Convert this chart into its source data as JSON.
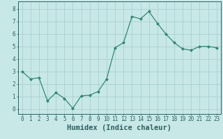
{
  "x": [
    0,
    1,
    2,
    3,
    4,
    5,
    6,
    7,
    8,
    9,
    10,
    11,
    12,
    13,
    14,
    15,
    16,
    17,
    18,
    19,
    20,
    21,
    22,
    23
  ],
  "y": [
    3.0,
    2.4,
    2.5,
    0.65,
    1.3,
    0.85,
    0.05,
    1.05,
    1.1,
    1.4,
    2.4,
    4.9,
    5.3,
    7.4,
    7.2,
    7.8,
    6.85,
    6.0,
    5.3,
    4.8,
    4.7,
    5.0,
    5.0,
    4.9
  ],
  "line_color": "#2d8a72",
  "marker": "D",
  "marker_size": 2.0,
  "background_color": "#c8e8e8",
  "grid_color": "#aacece",
  "xlabel": "Humidex (Indice chaleur)",
  "xlim": [
    -0.5,
    23.5
  ],
  "ylim": [
    -0.4,
    8.6
  ],
  "yticks": [
    0,
    1,
    2,
    3,
    4,
    5,
    6,
    7,
    8
  ],
  "xticks": [
    0,
    1,
    2,
    3,
    4,
    5,
    6,
    7,
    8,
    9,
    10,
    11,
    12,
    13,
    14,
    15,
    16,
    17,
    18,
    19,
    20,
    21,
    22,
    23
  ],
  "tick_fontsize": 5.5,
  "xlabel_fontsize": 7.5,
  "label_color": "#2d6060",
  "spine_color": "#2d6060",
  "line_width": 0.9
}
